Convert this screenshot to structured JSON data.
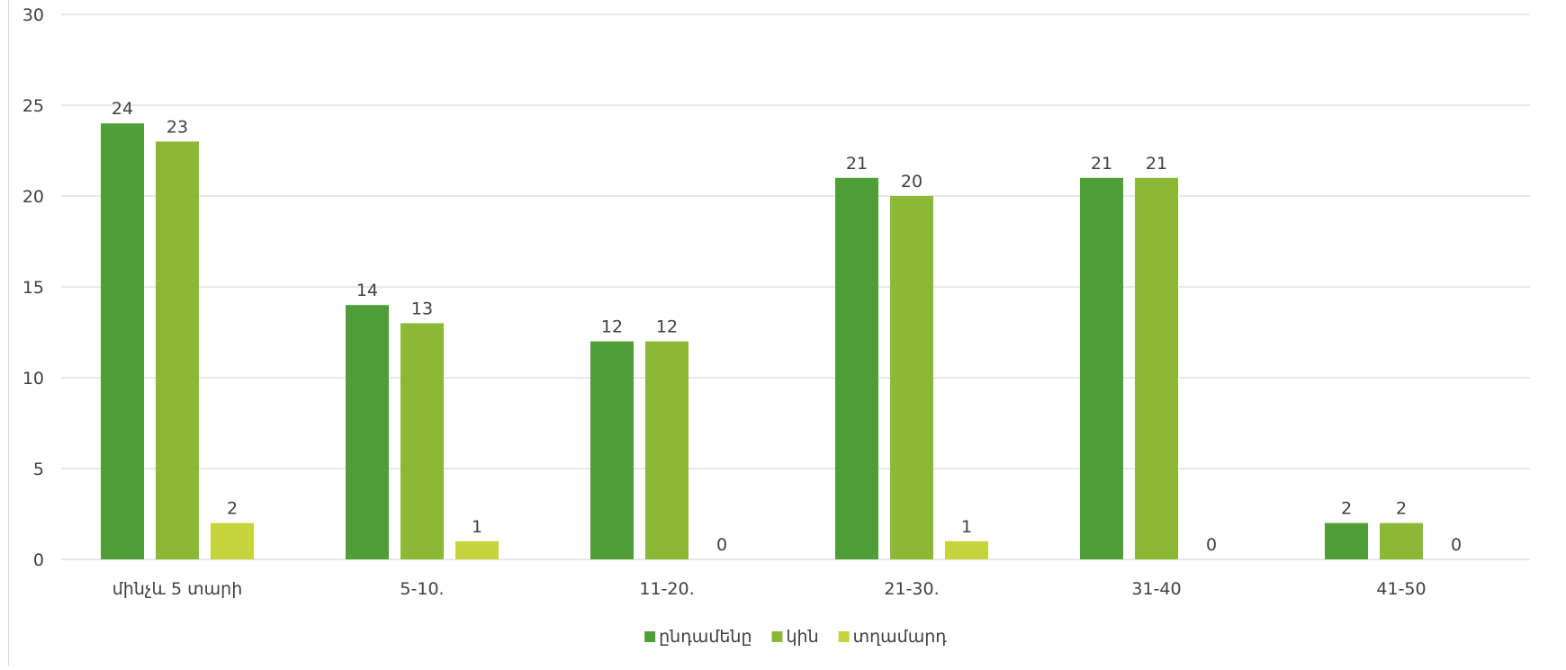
{
  "chart_data": {
    "type": "bar",
    "categories": [
      "մինչև 5 տարի",
      "5-10.",
      "11-20.",
      "21-30.",
      "31-40",
      "41-50"
    ],
    "series": [
      {
        "name": "ընդամենը",
        "values": [
          24,
          14,
          12,
          21,
          21,
          2
        ],
        "color": "#4f9e37"
      },
      {
        "name": "կին",
        "values": [
          23,
          13,
          12,
          20,
          21,
          2
        ],
        "color": "#8bb936"
      },
      {
        "name": "տղամարդ",
        "values": [
          2,
          1,
          0,
          1,
          0,
          0
        ],
        "color": "#c5d43a"
      }
    ],
    "yticks": [
      "0",
      "5",
      "10",
      "15",
      "20",
      "25",
      "30"
    ],
    "ylim": [
      0,
      30
    ],
    "grid": true,
    "legend_position": "bottom-center",
    "data_labels": true
  }
}
